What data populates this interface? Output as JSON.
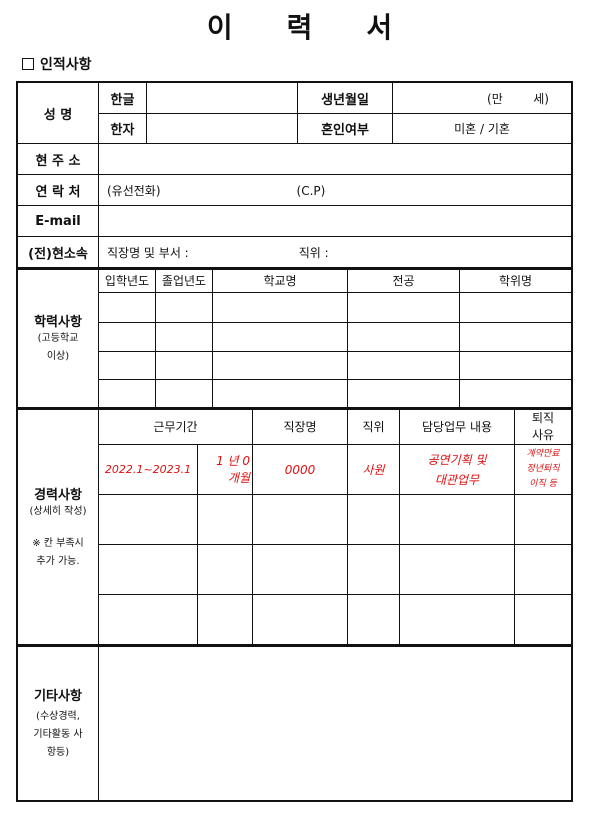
{
  "title": [
    "이",
    "력",
    "서"
  ],
  "section": "인적사항",
  "personal": {
    "name": "성 명",
    "hangul": "한글",
    "hanja": "한자",
    "birth": "생년월일",
    "age": "(만        세)",
    "marriage": "혼인여부",
    "marriage_value": "미혼 / 기혼",
    "address": "현 주 소",
    "contact": "연 락 처",
    "landline": "(유선전화)",
    "cp": "(C.P)",
    "email": "E-mail",
    "affiliation": "(전)현소속",
    "dept": "직장명 및 부서 :",
    "position": "직위 :"
  },
  "education": {
    "label": "학력사항",
    "note": "(고등학교 이상)",
    "headers": [
      "입학년도",
      "졸업년도",
      "학교명",
      "전공",
      "학위명"
    ]
  },
  "career": {
    "label": "경력사항",
    "note": "(상세히 작성)",
    "note2": "※ 칸 부족시 추가 가능.",
    "headers": [
      "근무기간",
      "직장명",
      "직위",
      "담당업무 내용",
      "퇴직 사유"
    ],
    "example": [
      "2022.1~2023.1",
      "1 년 0개월",
      "0000",
      "사원",
      "공연기획 및 대관업무",
      "계약만료 정년퇴직 이직 등"
    ]
  },
  "etc": {
    "label": "기타사항",
    "note": "(수상경력, 기타활동 사항등)"
  }
}
